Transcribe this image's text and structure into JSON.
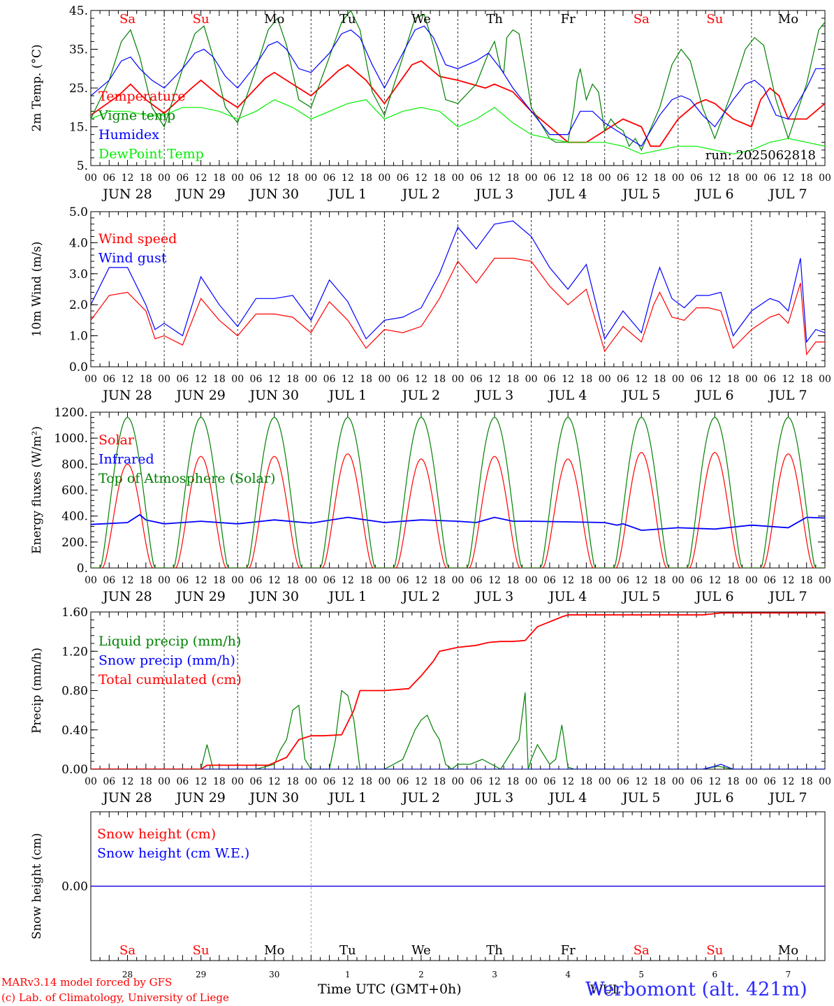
{
  "colors": {
    "red": "#ff0000",
    "green": "#008000",
    "blue": "#0000ff",
    "lime": "#00ee00",
    "grid": "#555555"
  },
  "run_label": "run: 2025062818",
  "hour_labels": [
    "00",
    "06",
    "12",
    "18"
  ],
  "date_labels": [
    "JUN 28",
    "JUN 29",
    "JUN 30",
    "JUL  1",
    "JUL  2",
    "JUL  3",
    "JUL  4",
    "JUL  5",
    "JUL  6",
    "JUL  7"
  ],
  "weekday_labels": [
    {
      "text": "Sa",
      "color": "#ff0000"
    },
    {
      "text": "Su",
      "color": "#ff0000"
    },
    {
      "text": "Mo",
      "color": "#000000"
    },
    {
      "text": "Tu",
      "color": "#000000"
    },
    {
      "text": "We",
      "color": "#000000"
    },
    {
      "text": "Th",
      "color": "#000000"
    },
    {
      "text": "Fr",
      "color": "#000000"
    },
    {
      "text": "Sa",
      "color": "#ff0000"
    },
    {
      "text": "Su",
      "color": "#ff0000"
    },
    {
      "text": "Mo",
      "color": "#000000"
    }
  ],
  "day_numbers": [
    "28",
    "29",
    "30",
    "1",
    "2",
    "3",
    "4",
    "5",
    "6",
    "7"
  ],
  "footer": {
    "model": "MARv3.14 model forced by GFS",
    "copyright": "(c) Lab. of Climatology, University of Liege",
    "xaxis": "Time UTC (GMT+0h)",
    "overlap": "WUL",
    "station": "Werbomont (alt. 421m)"
  },
  "chart_data": [
    {
      "type": "line",
      "ylabel": "2m Temp. (°C)",
      "ylim": [
        5,
        45
      ],
      "yticks": [
        5,
        15,
        25,
        35,
        45
      ],
      "ytick_labels": [
        "5.",
        "15.",
        "25.",
        "35.",
        "45."
      ],
      "x_unit": "hours since 2025-06-28 00 UTC",
      "xlim": [
        0,
        240
      ],
      "series": [
        {
          "name": "Temperature",
          "color": "#ff0000",
          "x": [
            0,
            9,
            13,
            18,
            24,
            33,
            36,
            42,
            48,
            57,
            60,
            66,
            72,
            81,
            84,
            90,
            96,
            105,
            108,
            114,
            120,
            129,
            132,
            138,
            144,
            153,
            156,
            162,
            168,
            174,
            180,
            183,
            186,
            192,
            198,
            201,
            204,
            210,
            216,
            219,
            222,
            225,
            228,
            234,
            240
          ],
          "y": [
            18,
            23,
            26,
            22,
            18.5,
            25,
            27,
            23,
            20,
            27.5,
            29,
            26,
            23,
            29.5,
            31,
            27,
            21,
            31,
            32,
            28,
            27,
            25,
            26,
            24,
            19,
            13,
            11,
            11,
            14,
            17,
            15,
            10,
            10,
            17,
            21,
            22,
            21,
            17,
            15,
            22,
            25,
            23,
            17,
            17,
            21
          ]
        },
        {
          "name": "Vigne temp",
          "color": "#008000",
          "x": [
            0,
            6,
            10,
            13,
            16,
            20,
            24,
            30,
            34,
            37,
            40,
            44,
            48,
            54,
            58,
            61,
            64,
            68,
            72,
            78,
            82,
            85,
            88,
            92,
            96,
            102,
            106,
            109,
            112,
            116,
            120,
            126,
            130,
            132,
            134,
            135,
            136,
            138,
            140,
            142,
            144,
            150,
            152,
            156,
            158,
            159,
            160,
            162,
            164,
            166,
            168,
            170,
            172,
            174,
            176,
            178,
            180,
            186,
            190,
            193,
            196,
            200,
            204,
            210,
            214,
            217,
            220,
            224,
            228,
            234,
            238,
            240
          ],
          "y": [
            17,
            27,
            37,
            40,
            33,
            20,
            15,
            30,
            39,
            41,
            33,
            20,
            16,
            30,
            40,
            43,
            36,
            22,
            20,
            33,
            42,
            45,
            40,
            24,
            18,
            33,
            43,
            44,
            36,
            22,
            21,
            26,
            34,
            37,
            30,
            29,
            38,
            40,
            39,
            30,
            20,
            12,
            11,
            11,
            20,
            27,
            30,
            22,
            26,
            24,
            14,
            17,
            15,
            14,
            10,
            12,
            9,
            20,
            31,
            35,
            32,
            20,
            12,
            25,
            35,
            38,
            36,
            22,
            12,
            26,
            40,
            42
          ]
        },
        {
          "name": "Humidex",
          "color": "#0000ff",
          "x": [
            0,
            6,
            10,
            13,
            16,
            20,
            24,
            30,
            34,
            37,
            40,
            44,
            48,
            54,
            58,
            61,
            64,
            68,
            72,
            78,
            82,
            85,
            88,
            92,
            96,
            102,
            106,
            109,
            112,
            116,
            120,
            126,
            130,
            134,
            138,
            144,
            150,
            156,
            160,
            164,
            168,
            172,
            176,
            180,
            186,
            190,
            193,
            196,
            200,
            204,
            210,
            214,
            217,
            220,
            224,
            228,
            234,
            237,
            240
          ],
          "y": [
            23,
            27,
            32,
            33,
            30,
            27,
            25,
            30,
            34,
            35,
            33,
            28,
            25,
            31,
            36,
            37,
            35,
            30,
            29,
            34,
            39,
            40,
            38,
            31,
            25,
            34,
            40,
            41,
            38,
            31,
            30,
            32,
            34,
            30,
            25,
            19,
            13,
            13,
            19,
            19,
            16,
            14,
            12,
            10,
            18,
            22,
            23,
            22,
            18,
            15,
            22,
            26,
            27,
            25,
            18,
            17,
            25,
            30,
            30
          ]
        },
        {
          "name": "DewPoint Temp",
          "color": "#00ee00",
          "x": [
            0,
            6,
            12,
            18,
            24,
            30,
            36,
            42,
            48,
            54,
            60,
            66,
            72,
            78,
            84,
            90,
            96,
            102,
            108,
            114,
            120,
            126,
            132,
            138,
            144,
            150,
            156,
            162,
            168,
            174,
            180,
            186,
            192,
            198,
            204,
            210,
            216,
            222,
            228,
            234,
            240
          ],
          "y": [
            17,
            19,
            19,
            18,
            18,
            20,
            20,
            19,
            17,
            19,
            22,
            20,
            17,
            19,
            21,
            22,
            17,
            19,
            20,
            19,
            15,
            17,
            20,
            16,
            13,
            12,
            11,
            11,
            11,
            10,
            8,
            9,
            10,
            10,
            9,
            8,
            9,
            11,
            12,
            11,
            10
          ]
        }
      ]
    },
    {
      "type": "line",
      "ylabel": "10m Wind (m/s)",
      "ylim": [
        0,
        5
      ],
      "yticks": [
        0,
        1,
        2,
        3,
        4,
        5
      ],
      "ytick_labels": [
        "0.0",
        "1.0",
        "2.0",
        "3.0",
        "4.0",
        "5.0"
      ],
      "x_unit": "hours since 2025-06-28 00 UTC",
      "xlim": [
        0,
        240
      ],
      "series": [
        {
          "name": "Wind speed",
          "color": "#ff0000",
          "x": [
            0,
            6,
            12,
            18,
            21,
            24,
            30,
            36,
            42,
            48,
            54,
            60,
            66,
            72,
            78,
            84,
            90,
            96,
            102,
            108,
            114,
            120,
            126,
            132,
            138,
            144,
            150,
            156,
            162,
            168,
            174,
            180,
            184,
            186,
            190,
            194,
            198,
            202,
            206,
            210,
            216,
            222,
            225,
            228,
            232,
            234,
            237,
            240
          ],
          "y": [
            1.5,
            2.3,
            2.4,
            1.8,
            0.9,
            1.0,
            0.7,
            2.2,
            1.5,
            1.0,
            1.7,
            1.7,
            1.6,
            1.1,
            2.1,
            1.5,
            0.6,
            1.2,
            1.1,
            1.3,
            2.2,
            3.4,
            2.7,
            3.5,
            3.5,
            3.4,
            2.6,
            2.0,
            2.5,
            0.5,
            1.3,
            0.8,
            2.0,
            2.4,
            1.6,
            1.5,
            1.9,
            1.9,
            1.8,
            0.6,
            1.2,
            1.6,
            1.7,
            1.4,
            2.7,
            0.4,
            0.8,
            0.8
          ]
        },
        {
          "name": "Wind gust",
          "color": "#0000ff",
          "x": [
            0,
            6,
            12,
            18,
            21,
            24,
            30,
            36,
            42,
            48,
            54,
            60,
            66,
            72,
            78,
            84,
            90,
            96,
            102,
            108,
            114,
            120,
            126,
            132,
            138,
            144,
            150,
            156,
            162,
            168,
            174,
            180,
            184,
            186,
            190,
            194,
            198,
            202,
            206,
            210,
            216,
            222,
            225,
            228,
            232,
            234,
            237,
            240
          ],
          "y": [
            2.0,
            3.2,
            3.2,
            2.0,
            1.2,
            1.4,
            1.0,
            2.9,
            2.0,
            1.3,
            2.2,
            2.2,
            2.3,
            1.5,
            2.8,
            2.1,
            0.9,
            1.5,
            1.6,
            1.9,
            3.0,
            4.5,
            3.8,
            4.6,
            4.7,
            4.2,
            3.2,
            2.5,
            3.3,
            0.9,
            1.8,
            1.1,
            2.6,
            3.2,
            2.2,
            1.9,
            2.3,
            2.3,
            2.4,
            1.0,
            1.8,
            2.2,
            2.1,
            1.8,
            3.5,
            0.8,
            1.2,
            1.1
          ]
        }
      ]
    },
    {
      "type": "line",
      "ylabel": "Energy fluxes (W/m²)",
      "ylim": [
        0,
        1200
      ],
      "yticks": [
        0,
        200,
        400,
        600,
        800,
        1000,
        1200
      ],
      "ytick_labels": [
        "0.",
        "200.",
        "400.",
        "600.",
        "800.",
        "1000.",
        "1200."
      ],
      "x_unit": "hours since 2025-06-28 00 UTC",
      "xlim": [
        0,
        240
      ],
      "series": [
        {
          "name": "Solar",
          "color": "#ff0000",
          "day_peaks": [
            800,
            860,
            860,
            880,
            840,
            860,
            840,
            890,
            890,
            880
          ]
        },
        {
          "name": "Infrared",
          "color": "#0000ff",
          "x": [
            0,
            12,
            16,
            18,
            24,
            36,
            48,
            60,
            72,
            84,
            96,
            108,
            120,
            126,
            132,
            138,
            144,
            156,
            168,
            172,
            174,
            180,
            192,
            204,
            216,
            228,
            234,
            240
          ],
          "y": [
            335,
            350,
            410,
            370,
            340,
            360,
            340,
            370,
            345,
            390,
            350,
            370,
            360,
            350,
            390,
            360,
            360,
            355,
            350,
            330,
            340,
            290,
            310,
            300,
            330,
            310,
            390,
            385
          ]
        },
        {
          "name": "Top of Atmosphere (Solar)",
          "color": "#008000",
          "day_peak": 1160
        }
      ]
    },
    {
      "type": "line",
      "ylabel": "Precip (mm/h)",
      "ylim": [
        0,
        1.6
      ],
      "yticks": [
        0,
        0.4,
        0.8,
        1.2,
        1.6
      ],
      "ytick_labels": [
        "0.00",
        "0.40",
        "0.80",
        "1.20",
        "1.60"
      ],
      "x_unit": "hours since 2025-06-28 00 UTC",
      "xlim": [
        0,
        240
      ],
      "series": [
        {
          "name": "Liquid precip (mm/h)",
          "color": "#008000",
          "x": [
            0,
            30,
            36,
            38,
            40,
            54,
            60,
            62,
            64,
            66,
            68,
            70,
            72,
            78,
            80,
            82,
            84,
            86,
            88,
            90,
            96,
            102,
            106,
            108,
            110,
            112,
            114,
            116,
            118,
            120,
            124,
            128,
            134,
            140,
            142,
            143,
            144,
            146,
            148,
            150,
            152,
            154,
            156,
            158,
            160,
            200,
            205,
            210,
            240
          ],
          "y": [
            0,
            0,
            0,
            0.25,
            0,
            0,
            0.05,
            0.2,
            0.3,
            0.6,
            0.65,
            0.1,
            0,
            0,
            0.3,
            0.8,
            0.75,
            0.5,
            0,
            0,
            0,
            0.1,
            0.4,
            0.5,
            0.55,
            0.4,
            0.3,
            0.05,
            0,
            0.05,
            0.05,
            0.1,
            0,
            0.3,
            0.78,
            0,
            0.1,
            0.25,
            0.15,
            0.05,
            0.1,
            0.45,
            0.02,
            0,
            0,
            0,
            0.03,
            0,
            0
          ]
        },
        {
          "name": "Snow precip (mm/h)",
          "color": "#0000ff",
          "x": [
            0,
            200,
            204,
            206,
            210,
            240
          ],
          "y": [
            0,
            0,
            0.03,
            0.05,
            0,
            0
          ]
        },
        {
          "name": "Total cumulated (cm)",
          "color": "#ff0000",
          "x": [
            0,
            36,
            38,
            58,
            64,
            68,
            72,
            76,
            82,
            86,
            88,
            90,
            96,
            104,
            108,
            112,
            114,
            120,
            126,
            130,
            134,
            138,
            142,
            144,
            146,
            150,
            154,
            156,
            160,
            200,
            206,
            240
          ],
          "y": [
            0,
            0,
            0.04,
            0.04,
            0.12,
            0.3,
            0.34,
            0.34,
            0.35,
            0.6,
            0.8,
            0.8,
            0.8,
            0.82,
            0.95,
            1.1,
            1.2,
            1.24,
            1.26,
            1.29,
            1.3,
            1.3,
            1.31,
            1.38,
            1.45,
            1.5,
            1.55,
            1.57,
            1.57,
            1.57,
            1.59,
            1.59
          ]
        }
      ]
    },
    {
      "type": "line",
      "ylabel": "Snow height (cm)",
      "ylim": [
        -1,
        1
      ],
      "yticks": [
        0
      ],
      "ytick_labels": [
        "0.00"
      ],
      "x_unit": "hours since 2025-06-28 00 UTC",
      "xlim": [
        0,
        240
      ],
      "series": [
        {
          "name": "Snow height (cm)",
          "color": "#ff0000",
          "x": [
            0,
            240
          ],
          "y": [
            0,
            0
          ]
        },
        {
          "name": "Snow height (cm W.E.)",
          "color": "#0000ff",
          "x": [
            0,
            240
          ],
          "y": [
            0,
            0
          ]
        }
      ]
    }
  ]
}
